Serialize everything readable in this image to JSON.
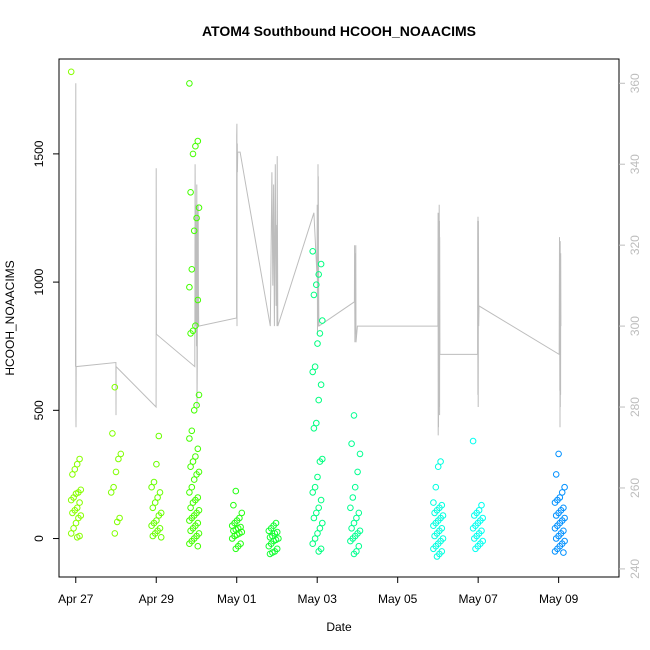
{
  "chart_data": {
    "type": "scatter",
    "title": "ATOM4 Southbound HCOOH_NOAACIMS",
    "xlabel": "Date",
    "ylabel": "HCOOH_NOAACIMS",
    "x_axis": {
      "kind": "date",
      "range": [
        "2018-04-26T14:00",
        "2018-05-10T12:00"
      ],
      "ticks": [
        "Apr 27",
        "Apr 29",
        "May 01",
        "May 03",
        "May 05",
        "May 07",
        "May 09"
      ]
    },
    "y_axis": {
      "range": [
        -150,
        1870
      ],
      "ticks": [
        0,
        500,
        1000,
        1500
      ]
    },
    "y2_axis": {
      "label": "",
      "range": [
        238,
        366
      ],
      "ticks": [
        240,
        260,
        280,
        300,
        320,
        340,
        360
      ],
      "color": "#bdbdbd"
    },
    "grid": false,
    "legend": "none",
    "point_colors": {
      "start": "#88ff00",
      "middle": "#00ff66",
      "late": "#00ffff",
      "end": "#0088ff"
    },
    "line_color": "#bdbdbd",
    "series": [
      {
        "kind": "points",
        "clusters": [
          {
            "date": "2018-04-27T00:10",
            "color": "#88ff00",
            "values": [
              1820,
              310,
              290,
              270,
              250,
              190,
              180,
              175,
              160,
              150,
              140,
              120,
              110,
              100,
              90,
              80,
              60,
              40,
              20,
              10,
              5
            ]
          },
          {
            "date": "2018-04-28T00:00",
            "color": "#80ff00",
            "values": [
              590,
              410,
              330,
              310,
              260,
              200,
              180,
              80,
              65,
              20
            ]
          },
          {
            "date": "2018-04-29T00:05",
            "color": "#6aff00",
            "values": [
              400,
              290,
              220,
              200,
              180,
              160,
              140,
              120,
              100,
              90,
              70,
              60,
              50,
              40,
              30,
              20,
              10,
              5
            ]
          },
          {
            "date": "2018-04-29T22:40",
            "color": "#44ff00",
            "values": [
              1775,
              1550,
              1530,
              1500,
              1350,
              1290,
              1250,
              1200,
              1050,
              980,
              930,
              830,
              810,
              800,
              560,
              520,
              500,
              420,
              390,
              350,
              320,
              300,
              280,
              260,
              250,
              230,
              200,
              180,
              160,
              150,
              140,
              120,
              110,
              100,
              90,
              80,
              70,
              60,
              50,
              40,
              30,
              20,
              10,
              0,
              -10,
              -20,
              -30
            ]
          },
          {
            "date": "2018-05-01T00:10",
            "color": "#22ff10",
            "values": [
              185,
              130,
              100,
              80,
              70,
              60,
              50,
              45,
              40,
              35,
              30,
              25,
              20,
              15,
              10,
              0,
              -20,
              -30,
              -40
            ]
          },
          {
            "date": "2018-05-01T22:00",
            "color": "#10ff30",
            "values": [
              60,
              50,
              40,
              30,
              25,
              20,
              10,
              5,
              0,
              -5,
              -10,
              -20,
              -30,
              -40,
              -50,
              -55,
              -60
            ]
          },
          {
            "date": "2018-05-03T00:10",
            "color": "#00ff80",
            "values": [
              1120,
              1070,
              1030,
              990,
              950,
              850,
              800,
              760,
              670,
              650,
              600,
              540,
              450,
              430,
              310,
              300,
              240,
              200,
              180,
              150,
              120,
              100,
              80,
              60,
              40,
              20,
              0,
              -20,
              -40,
              -50
            ]
          },
          {
            "date": "2018-05-03T22:40",
            "color": "#00ff90",
            "values": [
              480,
              370,
              330,
              260,
              200,
              160,
              120,
              100,
              80,
              60,
              40,
              30,
              20,
              10,
              0,
              -10,
              -30,
              -50,
              -60
            ]
          },
          {
            "date": "2018-05-06T00:10",
            "color": "#00ffe0",
            "values": [
              300,
              280,
              200,
              140,
              130,
              120,
              110,
              100,
              90,
              80,
              70,
              60,
              50,
              40,
              30,
              20,
              10,
              0,
              -10,
              -20,
              -30,
              -40,
              -50,
              -60,
              -70
            ]
          },
          {
            "date": "2018-05-06T23:50",
            "color": "#00fff0",
            "values": [
              380,
              130,
              110,
              100,
              90,
              80,
              70,
              60,
              50,
              40,
              30,
              20,
              10,
              0,
              -10,
              -20,
              -30,
              -40
            ]
          },
          {
            "date": "2018-05-09T00:40",
            "color": "#0090ff",
            "values": [
              330,
              250,
              200,
              180,
              160,
              150,
              140,
              120,
              110,
              100,
              90,
              80,
              70,
              60,
              50,
              40,
              30,
              20,
              10,
              0,
              -10,
              -20,
              -30,
              -40,
              -50,
              -55
            ]
          }
        ]
      },
      {
        "kind": "line",
        "axis": "right",
        "points": [
          [
            "2018-04-26T23:50",
            290
          ],
          [
            "2018-04-27T00:00",
            360
          ],
          [
            "2018-04-27T00:05",
            278
          ],
          [
            "2018-04-27T00:10",
            275
          ],
          [
            "2018-04-27T00:15",
            290
          ],
          [
            "2018-04-27T23:55",
            291
          ],
          [
            "2018-04-28T00:00",
            278
          ],
          [
            "2018-04-28T00:05",
            290
          ],
          [
            "2018-04-28T23:55",
            280
          ],
          [
            "2018-04-29T00:00",
            339
          ],
          [
            "2018-04-29T00:05",
            298
          ],
          [
            "2018-04-29T23:00",
            290
          ],
          [
            "2018-04-29T23:10",
            340
          ],
          [
            "2018-04-29T23:20",
            320
          ],
          [
            "2018-04-29T23:30",
            330
          ],
          [
            "2018-04-29T23:40",
            300
          ],
          [
            "2018-04-29T23:50",
            325
          ],
          [
            "2018-04-30T00:00",
            295
          ],
          [
            "2018-04-30T00:10",
            335
          ],
          [
            "2018-04-30T00:20",
            280
          ],
          [
            "2018-04-30T00:30",
            290
          ],
          [
            "2018-04-30T00:40",
            330
          ],
          [
            "2018-04-30T00:50",
            300
          ],
          [
            "2018-04-30T01:00",
            330
          ],
          [
            "2018-04-30T01:10",
            310
          ],
          [
            "2018-04-30T01:20",
            300
          ],
          [
            "2018-04-30T23:55",
            302
          ],
          [
            "2018-05-01T00:00",
            347
          ],
          [
            "2018-05-01T00:05",
            350
          ],
          [
            "2018-05-01T00:10",
            300
          ],
          [
            "2018-05-01T00:15",
            345
          ],
          [
            "2018-05-01T00:20",
            345
          ],
          [
            "2018-05-01T00:25",
            338
          ],
          [
            "2018-05-01T00:35",
            343
          ],
          [
            "2018-05-01T02:00",
            343
          ],
          [
            "2018-05-01T20:00",
            300
          ],
          [
            "2018-05-01T21:00",
            338
          ],
          [
            "2018-05-01T21:30",
            310
          ],
          [
            "2018-05-01T22:00",
            335
          ],
          [
            "2018-05-01T22:30",
            300
          ],
          [
            "2018-05-01T23:00",
            340
          ],
          [
            "2018-05-01T23:30",
            305
          ],
          [
            "2018-05-01T23:50",
            325
          ],
          [
            "2018-05-02T00:00",
            300
          ],
          [
            "2018-05-02T00:10",
            342
          ],
          [
            "2018-05-02T00:20",
            322
          ],
          [
            "2018-05-02T00:30",
            300
          ],
          [
            "2018-05-02T22:00",
            328
          ],
          [
            "2018-05-02T23:55",
            312
          ],
          [
            "2018-05-03T00:00",
            330
          ],
          [
            "2018-05-03T00:05",
            320
          ],
          [
            "2018-05-03T00:10",
            298
          ],
          [
            "2018-05-03T00:15",
            325
          ],
          [
            "2018-05-03T00:20",
            307
          ],
          [
            "2018-05-03T00:25",
            305
          ],
          [
            "2018-05-03T00:30",
            340
          ],
          [
            "2018-05-03T00:35",
            300
          ],
          [
            "2018-05-03T00:40",
            337
          ],
          [
            "2018-05-03T00:50",
            310
          ],
          [
            "2018-05-03T01:00",
            300
          ],
          [
            "2018-05-03T22:10",
            306
          ],
          [
            "2018-05-03T22:20",
            320
          ],
          [
            "2018-05-03T22:30",
            296
          ],
          [
            "2018-05-03T22:40",
            318
          ],
          [
            "2018-05-03T22:50",
            298
          ],
          [
            "2018-05-03T23:00",
            320
          ],
          [
            "2018-05-03T23:10",
            296
          ],
          [
            "2018-05-04T00:00",
            300
          ],
          [
            "2018-05-06T00:00",
            300
          ],
          [
            "2018-05-06T00:05",
            328
          ],
          [
            "2018-05-06T00:10",
            273
          ],
          [
            "2018-05-06T00:15",
            328
          ],
          [
            "2018-05-06T00:20",
            275
          ],
          [
            "2018-05-06T00:25",
            326
          ],
          [
            "2018-05-06T00:30",
            280
          ],
          [
            "2018-05-06T00:35",
            328
          ],
          [
            "2018-05-06T00:40",
            280
          ],
          [
            "2018-05-06T00:45",
            330
          ],
          [
            "2018-05-06T00:50",
            280
          ],
          [
            "2018-05-06T00:55",
            326
          ],
          [
            "2018-05-06T01:00",
            278
          ],
          [
            "2018-05-06T01:05",
            322
          ],
          [
            "2018-05-06T01:10",
            293
          ],
          [
            "2018-05-06T23:40",
            293
          ],
          [
            "2018-05-06T23:45",
            326
          ],
          [
            "2018-05-06T23:50",
            283
          ],
          [
            "2018-05-06T23:55",
            327
          ],
          [
            "2018-05-07T00:00",
            280
          ],
          [
            "2018-05-07T00:05",
            293
          ],
          [
            "2018-05-07T00:10",
            326
          ],
          [
            "2018-05-07T00:20",
            300
          ],
          [
            "2018-05-07T00:30",
            305
          ],
          [
            "2018-05-09T00:20",
            293
          ],
          [
            "2018-05-09T00:30",
            322
          ],
          [
            "2018-05-09T00:40",
            284
          ],
          [
            "2018-05-09T00:45",
            320
          ],
          [
            "2018-05-09T00:50",
            275
          ],
          [
            "2018-05-09T00:55",
            321
          ],
          [
            "2018-05-09T01:00",
            280
          ],
          [
            "2018-05-09T01:05",
            318
          ],
          [
            "2018-05-09T01:10",
            283
          ],
          [
            "2018-05-09T01:15",
            318
          ],
          [
            "2018-05-09T01:20",
            300
          ]
        ]
      }
    ]
  }
}
